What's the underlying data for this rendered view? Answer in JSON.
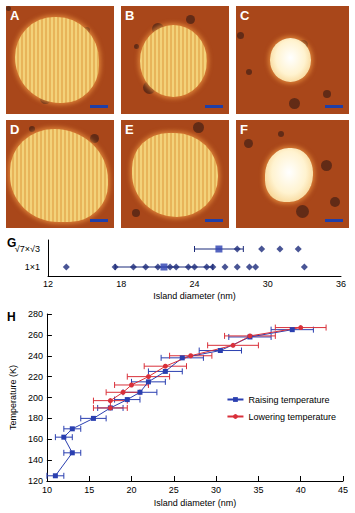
{
  "images": {
    "labels": [
      "A",
      "B",
      "C",
      "D",
      "E",
      "F"
    ]
  },
  "chart_data": [
    {
      "type": "scatter",
      "title": "G",
      "x_label": "Island diameter (nm)",
      "categories": [
        "1×1",
        "√7×√3"
      ],
      "xlim": [
        12,
        36
      ],
      "xticks": [
        12,
        18,
        24,
        30,
        36
      ],
      "grid": false,
      "marker": "diamond",
      "color": "#1b2a7a",
      "points": [
        {
          "category": "1×1",
          "x": [
            13.5,
            17.5,
            19,
            20,
            21,
            22,
            22.5,
            23.5,
            24,
            25,
            25.5,
            26.5,
            27.5,
            28.5,
            29,
            33
          ]
        },
        {
          "category": "√7×√3",
          "x": [
            27.5,
            29.5,
            31,
            32.5
          ]
        }
      ],
      "means": [
        {
          "category": "1×1",
          "x": 21.5,
          "error": 4,
          "marker": "rect"
        },
        {
          "category": "√7×√3",
          "x": 26,
          "error": 2,
          "marker": "rect"
        }
      ]
    },
    {
      "type": "line",
      "title": "H",
      "x_label": "Island diameter (nm)",
      "y_label": "Temperature (K)",
      "xlim": [
        10,
        45
      ],
      "xticks": [
        10,
        15,
        20,
        25,
        30,
        35,
        40,
        45
      ],
      "ylim": [
        120,
        280
      ],
      "yticks": [
        120,
        140,
        160,
        180,
        200,
        220,
        240,
        260,
        280
      ],
      "legend": "right",
      "grid": false,
      "series": [
        {
          "name": "Raising temperature",
          "color": "#2a3fb0",
          "marker": "rect",
          "line_style": "solid",
          "x": [
            11,
            13,
            12,
            13,
            15.5,
            17.5,
            19.5,
            21,
            22,
            24,
            26,
            30.5,
            34,
            39
          ],
          "values": [
            125,
            147,
            162,
            170,
            180,
            190,
            198,
            205,
            215,
            225,
            238,
            245,
            258,
            265
          ],
          "x_errors": [
            1,
            1,
            1,
            1,
            1.5,
            1.5,
            1.5,
            2,
            2,
            2,
            2.5,
            2.5,
            2.5,
            2.5
          ]
        },
        {
          "name": "Lowering temperature",
          "color": "#d9303a",
          "marker": "circle",
          "line_style": "solid",
          "x": [
            17.5,
            17.5,
            19,
            20,
            22,
            24,
            27,
            32,
            34,
            40
          ],
          "values": [
            190,
            197,
            205,
            212,
            220,
            230,
            240,
            250,
            259,
            267
          ],
          "x_errors": [
            2,
            2,
            2,
            2,
            2.5,
            2.5,
            2.5,
            3,
            3,
            3
          ]
        }
      ]
    }
  ]
}
